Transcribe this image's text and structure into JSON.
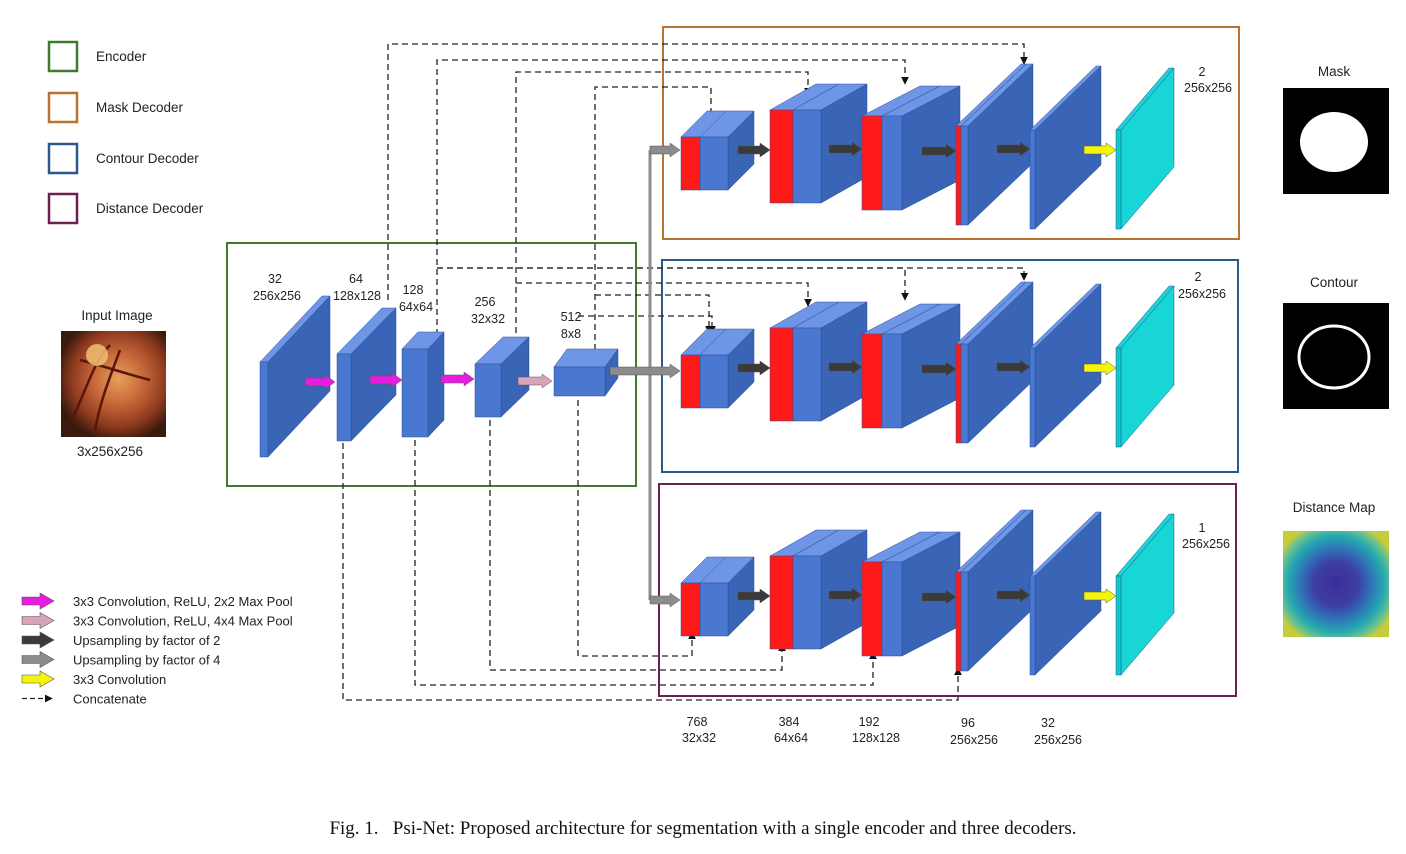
{
  "legend_boxes": [
    {
      "label": "Encoder",
      "color": "#3f7a2e"
    },
    {
      "label": "Mask Decoder",
      "color": "#b87333"
    },
    {
      "label": "Contour Decoder",
      "color": "#2b5a8a"
    },
    {
      "label": "Distance Decoder",
      "color": "#6b2150"
    }
  ],
  "legend_arrows": [
    {
      "label": "3x3 Convolution, ReLU, 2x2 Max Pool",
      "color": "#e81ce0"
    },
    {
      "label": "3x3 Convolution, ReLU, 4x4 Max Pool",
      "color": "#d9a3bc"
    },
    {
      "label": "Upsampling by factor of 2",
      "color": "#3a3a3a"
    },
    {
      "label": "Upsampling by factor of 4",
      "color": "#8c8c8c"
    },
    {
      "label": "3x3 Convolution",
      "color": "#f5f50a"
    },
    {
      "label": "Concatenate",
      "color": "dashed"
    }
  ],
  "input": {
    "title": "Input Image",
    "size": "3x256x256"
  },
  "encoder_labels": [
    {
      "ch": "32",
      "sz": "256x256"
    },
    {
      "ch": "64",
      "sz": "128x128"
    },
    {
      "ch": "128",
      "sz": "64x64"
    },
    {
      "ch": "256",
      "sz": "32x32"
    },
    {
      "ch": "512",
      "sz": "8x8"
    }
  ],
  "decoder_outputs": [
    {
      "ch": "2",
      "sz": "256x256"
    },
    {
      "ch": "2",
      "sz": "256x256"
    },
    {
      "ch": "1",
      "sz": "256x256"
    }
  ],
  "bottom_labels": [
    {
      "ch": "768",
      "sz": "32x32"
    },
    {
      "ch": "384",
      "sz": "64x64"
    },
    {
      "ch": "192",
      "sz": "128x128"
    },
    {
      "ch": "96",
      "sz": "256x256"
    },
    {
      "ch": "32",
      "sz": "256x256"
    }
  ],
  "outputs": [
    {
      "title": "Mask"
    },
    {
      "title": "Contour"
    },
    {
      "title": "Distance Map"
    }
  ],
  "colors": {
    "block_front": "#4a78d0",
    "block_top": "#6f96e6",
    "block_side": "#3a64b5",
    "concat_red": "#ff1a1a",
    "output_cyan": "#11c9c9"
  },
  "caption": "Fig. 1.   Psi-Net: Proposed architecture for segmentation with a single encoder and three decoders."
}
